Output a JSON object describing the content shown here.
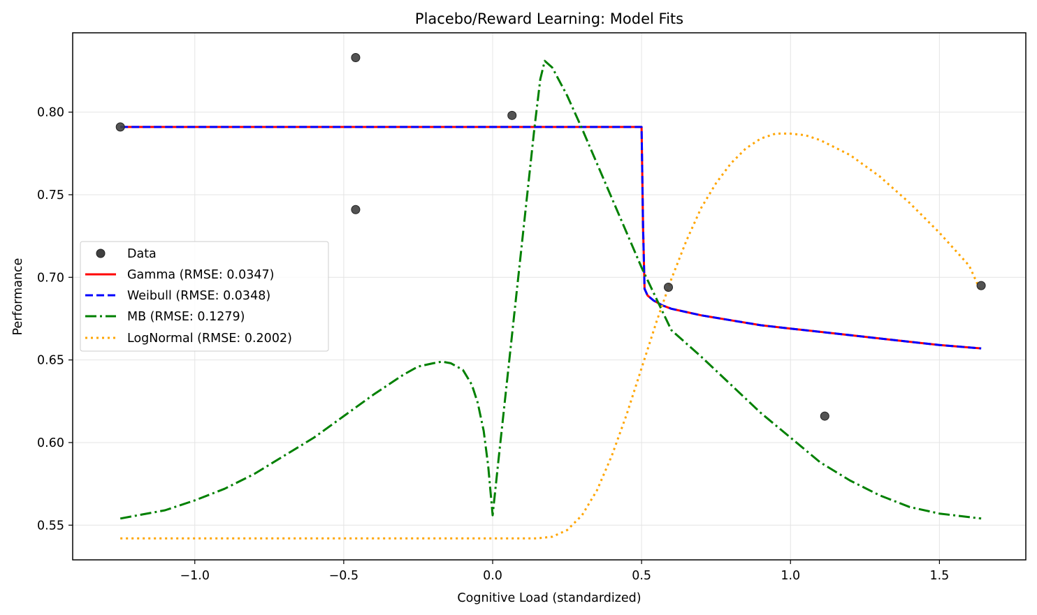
{
  "chart_data": {
    "type": "scatter",
    "title": "Placebo/Reward Learning: Model Fits",
    "xlabel": "Cognitive Load (standardized)",
    "ylabel": "Performance",
    "xlim": [
      -1.41,
      1.79
    ],
    "ylim": [
      0.529,
      0.848
    ],
    "xticks": [
      -1.0,
      -0.5,
      0.0,
      0.5,
      1.0,
      1.5
    ],
    "xtick_labels": [
      "−1.0",
      "−0.5",
      "0.0",
      "0.5",
      "1.0",
      "1.5"
    ],
    "yticks": [
      0.55,
      0.6,
      0.65,
      0.7,
      0.75,
      0.8
    ],
    "ytick_labels": [
      "0.55",
      "0.60",
      "0.65",
      "0.70",
      "0.75",
      "0.80"
    ],
    "grid": true,
    "legend_position": "center-left",
    "data_points": {
      "name": "Data",
      "color": "#404040",
      "x": [
        -1.25,
        -0.46,
        -0.46,
        0.065,
        0.59,
        1.115,
        1.64
      ],
      "y": [
        0.791,
        0.833,
        0.741,
        0.798,
        0.694,
        0.616,
        0.695
      ]
    },
    "series": [
      {
        "name": "Gamma (RMSE: 0.0347)",
        "color": "#ff0000",
        "style": "solid",
        "x": [
          -1.25,
          0.49,
          0.5,
          0.505,
          0.51,
          0.52,
          0.54,
          0.57,
          0.6,
          0.65,
          0.7,
          0.8,
          0.9,
          1.0,
          1.1,
          1.2,
          1.3,
          1.4,
          1.5,
          1.64
        ],
        "y": [
          0.791,
          0.791,
          0.791,
          0.73,
          0.693,
          0.689,
          0.686,
          0.683,
          0.681,
          0.679,
          0.677,
          0.674,
          0.671,
          0.669,
          0.667,
          0.665,
          0.663,
          0.661,
          0.659,
          0.657
        ]
      },
      {
        "name": "Weibull (RMSE: 0.0348)",
        "color": "#0000ff",
        "style": "dashed",
        "x": [
          -1.25,
          0.49,
          0.5,
          0.505,
          0.51,
          0.52,
          0.54,
          0.57,
          0.6,
          0.65,
          0.7,
          0.8,
          0.9,
          1.0,
          1.1,
          1.2,
          1.3,
          1.4,
          1.5,
          1.64
        ],
        "y": [
          0.791,
          0.791,
          0.791,
          0.73,
          0.693,
          0.689,
          0.686,
          0.683,
          0.681,
          0.679,
          0.677,
          0.674,
          0.671,
          0.669,
          0.667,
          0.665,
          0.663,
          0.661,
          0.659,
          0.657
        ]
      },
      {
        "name": "MB (RMSE: 0.1279)",
        "color": "#008000",
        "style": "dashdot",
        "x": [
          -1.25,
          -1.1,
          -1.0,
          -0.9,
          -0.8,
          -0.7,
          -0.6,
          -0.5,
          -0.4,
          -0.3,
          -0.25,
          -0.2,
          -0.17,
          -0.14,
          -0.1,
          -0.07,
          -0.05,
          -0.03,
          -0.015,
          0.0,
          0.02,
          0.05,
          0.08,
          0.11,
          0.14,
          0.16,
          0.175,
          0.2,
          0.25,
          0.3,
          0.35,
          0.4,
          0.45,
          0.5,
          0.55,
          0.6,
          0.7,
          0.8,
          0.9,
          1.0,
          1.1,
          1.2,
          1.3,
          1.4,
          1.5,
          1.64
        ],
        "y": [
          0.554,
          0.559,
          0.565,
          0.572,
          0.581,
          0.592,
          0.603,
          0.616,
          0.629,
          0.641,
          0.646,
          0.648,
          0.649,
          0.648,
          0.644,
          0.635,
          0.624,
          0.607,
          0.586,
          0.556,
          0.59,
          0.64,
          0.69,
          0.74,
          0.79,
          0.82,
          0.831,
          0.827,
          0.81,
          0.79,
          0.769,
          0.748,
          0.727,
          0.706,
          0.687,
          0.668,
          0.652,
          0.635,
          0.618,
          0.603,
          0.588,
          0.577,
          0.568,
          0.561,
          0.557,
          0.554
        ]
      },
      {
        "name": "LogNormal (RMSE: 0.2002)",
        "color": "#ffa500",
        "style": "dotted",
        "x": [
          -1.25,
          0.0,
          0.15,
          0.2,
          0.25,
          0.3,
          0.35,
          0.4,
          0.45,
          0.5,
          0.55,
          0.6,
          0.65,
          0.7,
          0.75,
          0.8,
          0.85,
          0.9,
          0.95,
          1.0,
          1.05,
          1.1,
          1.2,
          1.3,
          1.4,
          1.5,
          1.6,
          1.64
        ],
        "y": [
          0.542,
          0.542,
          0.542,
          0.543,
          0.547,
          0.556,
          0.571,
          0.592,
          0.617,
          0.645,
          0.673,
          0.699,
          0.722,
          0.742,
          0.757,
          0.769,
          0.778,
          0.784,
          0.787,
          0.787,
          0.786,
          0.783,
          0.774,
          0.761,
          0.745,
          0.727,
          0.707,
          0.691
        ]
      }
    ]
  }
}
